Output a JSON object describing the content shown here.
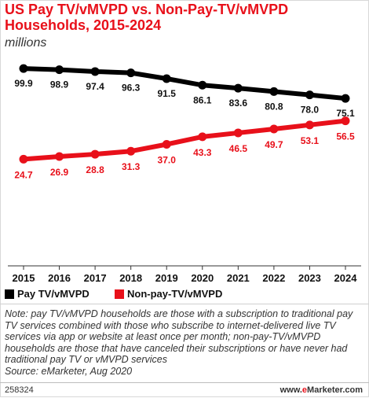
{
  "title": "US Pay TV/vMVPD vs. Non-Pay-TV/vMVPD Households, 2015-2024",
  "subtitle": "millions",
  "chart_data": {
    "type": "line",
    "title": "US Pay TV/vMVPD vs. Non-Pay-TV/vMVPD Households, 2015-2024",
    "subtitle": "millions",
    "categories": [
      "2015",
      "2016",
      "2017",
      "2018",
      "2019",
      "2020",
      "2021",
      "2022",
      "2023",
      "2024"
    ],
    "series": [
      {
        "name": "Pay TV/vMVPD",
        "color": "#000000",
        "values": [
          99.9,
          98.9,
          97.4,
          96.3,
          91.5,
          86.1,
          83.6,
          80.8,
          78.0,
          75.1
        ],
        "labels": [
          "99.9",
          "98.9",
          "97.4",
          "96.3",
          "91.5",
          "86.1",
          "83.6",
          "80.8",
          "78.0",
          "75.1"
        ]
      },
      {
        "name": "Non-pay-TV/vMVPD",
        "color": "#e8101a",
        "values": [
          24.7,
          26.9,
          28.8,
          31.3,
          37.0,
          43.3,
          46.5,
          49.7,
          53.1,
          56.5
        ],
        "labels": [
          "24.7",
          "26.9",
          "28.8",
          "31.3",
          "37.0",
          "43.3",
          "46.5",
          "49.7",
          "53.1",
          "56.5"
        ]
      }
    ],
    "xlabel": "",
    "ylabel": "",
    "legend": "bottom-left",
    "grid": false
  },
  "note": "Note: pay TV/vMVPD households are those with a subscription to traditional pay TV services combined with those who subscribe to internet-delivered live TV services via app or website at least once per month; non-pay-TV/vMVPD households are those that have canceled their subscriptions or have never had traditional pay TV or vMVPD services",
  "source": "Source: eMarketer, Aug 2020",
  "chart_id": "258324",
  "brand": {
    "prefix": "www.",
    "e": "e",
    "rest": "Marketer",
    "suffix": ".com"
  }
}
